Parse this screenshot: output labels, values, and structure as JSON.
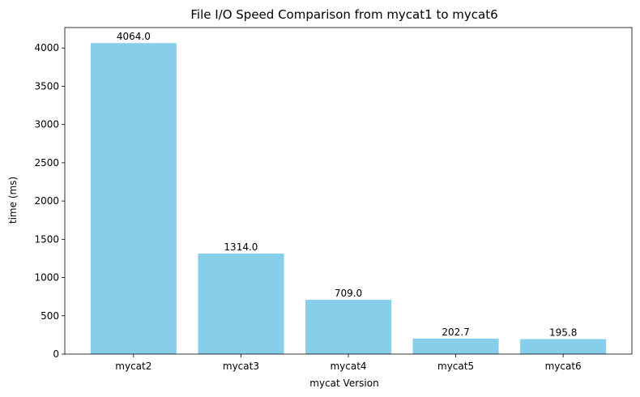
{
  "chart_data": {
    "type": "bar",
    "title": "File I/O Speed Comparison from mycat1 to mycat6",
    "xlabel": "mycat Version",
    "ylabel": "time (ms)",
    "categories": [
      "mycat2",
      "mycat3",
      "mycat4",
      "mycat5",
      "mycat6"
    ],
    "values": [
      4064.0,
      1314.0,
      709.0,
      202.7,
      195.8
    ],
    "data_labels": [
      "4064.0",
      "1314.0",
      "709.0",
      "202.7",
      "195.8"
    ],
    "ylim": [
      0,
      4267.2
    ],
    "yticks": [
      0,
      500,
      1000,
      1500,
      2000,
      2500,
      3000,
      3500,
      4000
    ],
    "bar_color": "#87CEEB",
    "grid": false
  }
}
